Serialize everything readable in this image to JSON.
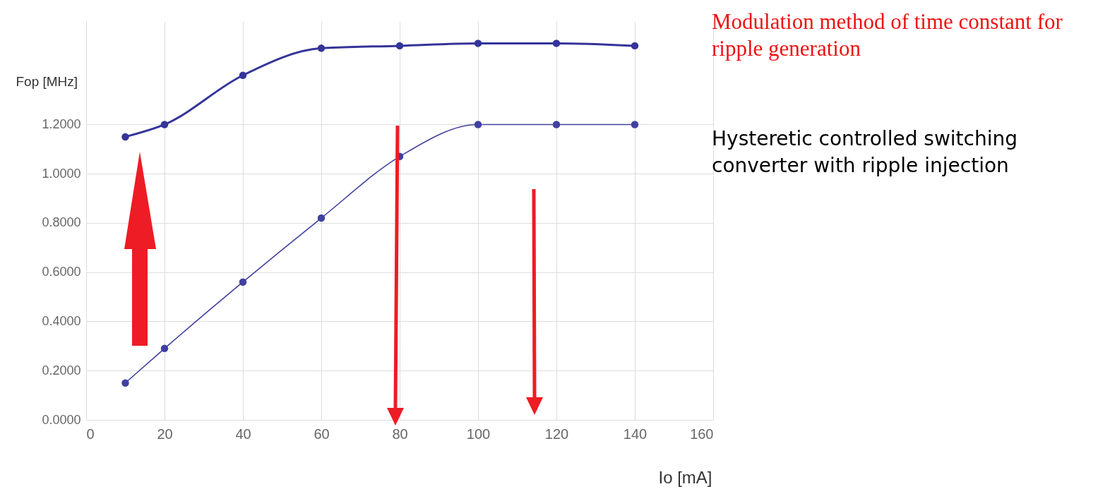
{
  "chart_data": {
    "type": "line",
    "xlabel": "Io [mA]",
    "ylabel": "Fop [MHz]",
    "x": [
      10,
      20,
      40,
      60,
      80,
      100,
      120,
      140
    ],
    "series": [
      {
        "color": "#34349a",
        "values": [
          1.15,
          1.2,
          1.4,
          1.51,
          1.52,
          1.53,
          1.53,
          1.52
        ]
      },
      {
        "color": "#4040a0",
        "values": [
          0.15,
          0.29,
          0.56,
          0.82,
          1.07,
          1.2,
          1.2,
          1.2
        ]
      }
    ],
    "xlim": [
      0,
      160
    ],
    "xticks": [
      0,
      20,
      40,
      60,
      80,
      100,
      120,
      140,
      160
    ],
    "ylim": [
      0,
      1.62
    ],
    "yticks": [
      {
        "value": 0,
        "label": "0.0000"
      },
      {
        "value": 0.2,
        "label": "0.2000"
      },
      {
        "value": 0.4,
        "label": "0.4000"
      },
      {
        "value": 0.6,
        "label": "0.6000"
      },
      {
        "value": 0.8,
        "label": "0.8000"
      },
      {
        "value": 1.0,
        "label": "1.0000"
      },
      {
        "value": 1.2,
        "label": "1.2000"
      }
    ],
    "grid": true,
    "marker": "circle",
    "line_style": "solid",
    "annotations": [
      "Modulation method of time constant for ripple generation",
      "Hysteretic controlled switching converter with ripple injection"
    ]
  }
}
